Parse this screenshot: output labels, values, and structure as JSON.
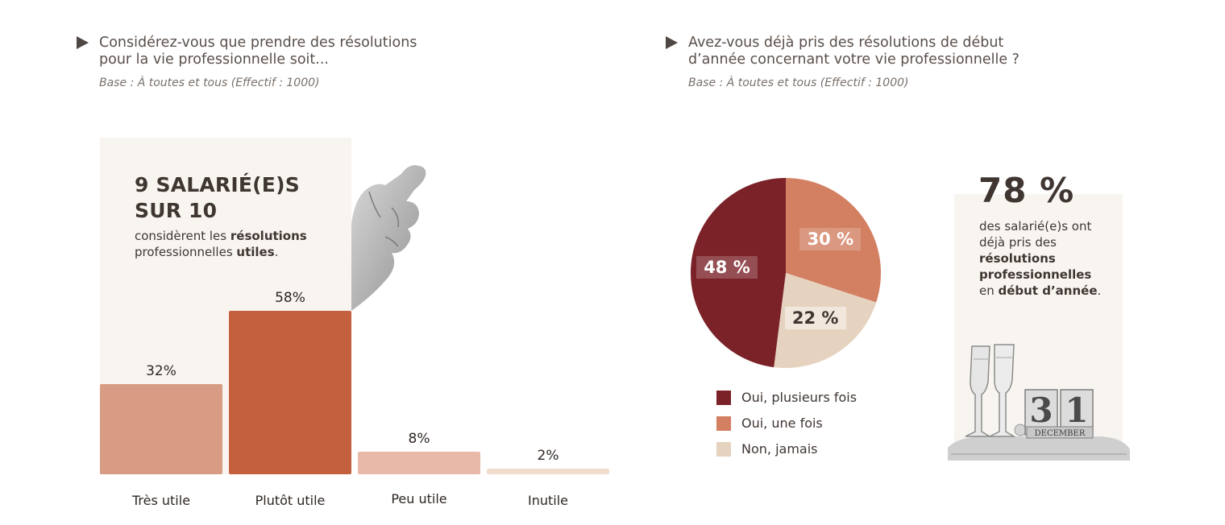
{
  "left": {
    "title_line1": "Considérez-vous que prendre des résolutions",
    "title_line2": "pour la vie professionnelle soit...",
    "base": "Base : À toutes et tous (Effectif : 1000)",
    "headline_line1": "9 SALARIÉ(E)S",
    "headline_line2": "SUR 10",
    "sub_pre": "considèrent les ",
    "sub_b1": "résolutions",
    "sub_mid": "professionnelles ",
    "sub_b2": "utiles",
    "sub_end": "."
  },
  "right": {
    "title_line1": "Avez-vous déjà pris des résolutions de début",
    "title_line2": "d’année concernant votre vie professionnelle ?",
    "base": "Base : À toutes et tous (Effectif : 1000)",
    "highlight_pct": "78 %",
    "desc_line1": "des salarié(e)s ont",
    "desc_line2": "déjà pris des",
    "desc_b1": "résolutions",
    "desc_b2": "professionnelles",
    "desc_pre3": "en ",
    "desc_b3": "début d’année",
    "desc_end": ".",
    "calendar_day": "31",
    "calendar_month": "DECEMBER"
  },
  "chart_data": [
    {
      "type": "bar",
      "categories": [
        "Très utile",
        "Plutôt utile",
        "Peu utile",
        "Inutile"
      ],
      "values": [
        32,
        58,
        8,
        2
      ],
      "value_labels": [
        "32%",
        "58%",
        "8%",
        "2%"
      ],
      "colors": [
        "#d89b84",
        "#c4603d",
        "#e8b9a8",
        "#f0dccd"
      ],
      "ylim": [
        0,
        58
      ]
    },
    {
      "type": "pie",
      "categories": [
        "Oui, plusieurs fois",
        "Oui, une fois",
        "Non, jamais"
      ],
      "values": [
        48,
        30,
        22
      ],
      "value_labels": [
        "48 %",
        "30 %",
        "22 %"
      ],
      "colors": [
        "#7b2228",
        "#d37f62",
        "#e5d3bf"
      ],
      "legend_position": "bottom"
    }
  ]
}
